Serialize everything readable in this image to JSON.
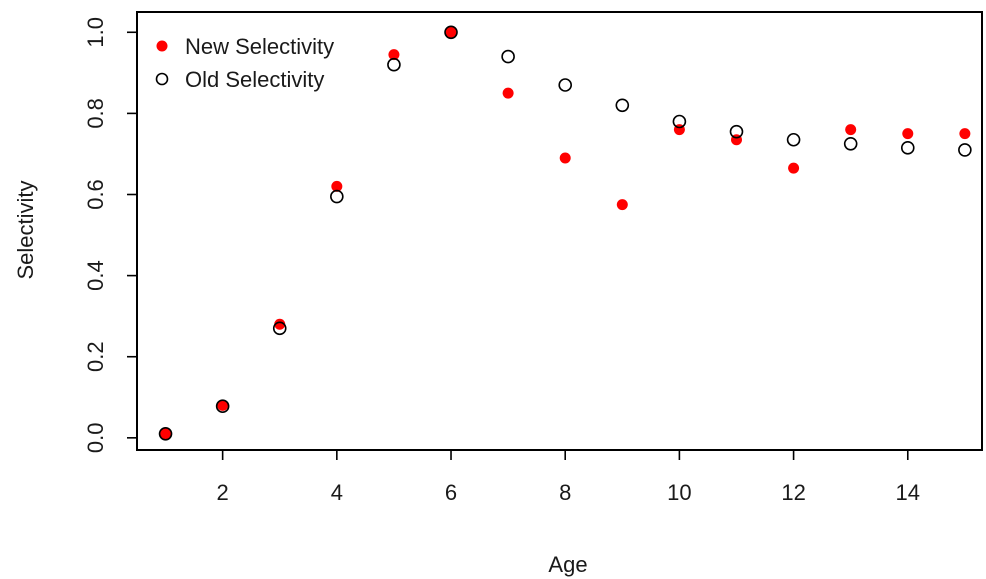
{
  "chart_data": {
    "type": "scatter",
    "xlabel": "Age",
    "ylabel": "Selectivity",
    "xlim": [
      0.5,
      15.3
    ],
    "ylim": [
      -0.03,
      1.05
    ],
    "x_ticks": [
      2,
      4,
      6,
      8,
      10,
      12,
      14
    ],
    "y_ticks": [
      0.0,
      0.2,
      0.4,
      0.6,
      0.8,
      1.0
    ],
    "y_tick_labels": [
      "0.0",
      "0.2",
      "0.4",
      "0.6",
      "0.8",
      "1.0"
    ],
    "grid": false,
    "legend_position": "top-left",
    "series": [
      {
        "name": "New Selectivity",
        "marker": "filled-circle",
        "color": "#ff0000",
        "x": [
          1,
          2,
          3,
          4,
          5,
          6,
          7,
          8,
          9,
          10,
          11,
          12,
          13,
          14,
          15
        ],
        "y": [
          0.01,
          0.08,
          0.28,
          0.62,
          0.945,
          1.0,
          0.85,
          0.69,
          0.575,
          0.76,
          0.735,
          0.665,
          0.76,
          0.75,
          0.75
        ]
      },
      {
        "name": "Old Selectivity",
        "marker": "open-circle",
        "color": "#000000",
        "x": [
          1,
          2,
          3,
          4,
          5,
          6,
          7,
          8,
          9,
          10,
          11,
          12,
          13,
          14,
          15
        ],
        "y": [
          0.01,
          0.078,
          0.27,
          0.595,
          0.92,
          1.0,
          0.94,
          0.87,
          0.82,
          0.78,
          0.755,
          0.735,
          0.725,
          0.715,
          0.71
        ]
      }
    ]
  }
}
